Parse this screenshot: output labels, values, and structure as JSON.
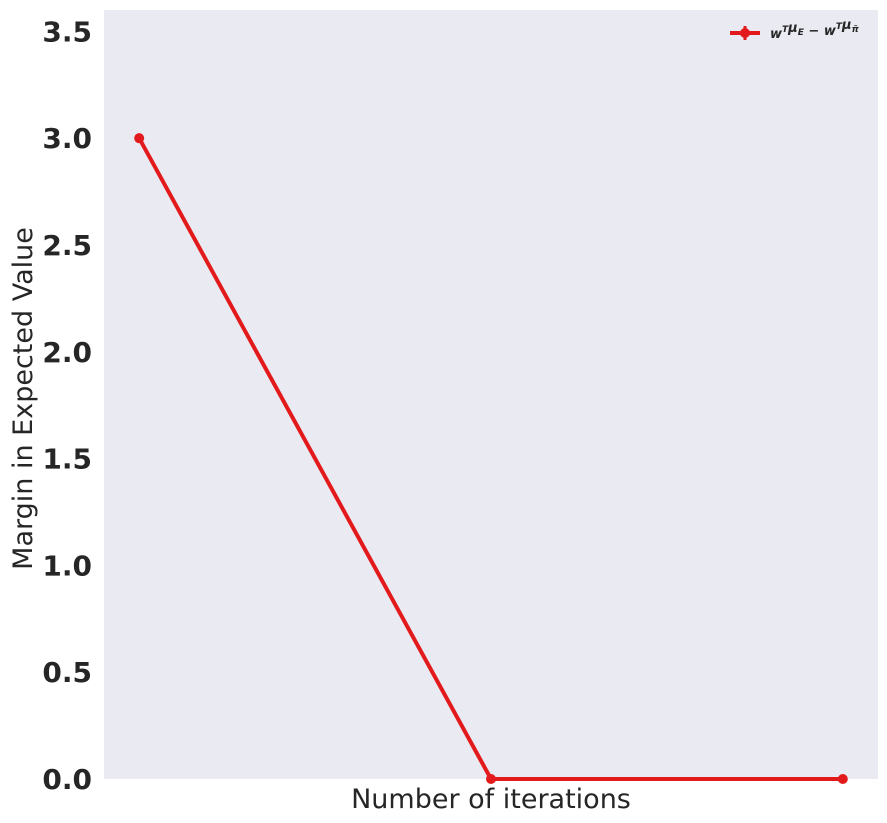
{
  "chart_data": {
    "type": "line",
    "title": "",
    "xlabel": "Number of iterations",
    "ylabel": "Margin in Expected Value",
    "x": [
      1,
      2,
      3
    ],
    "xlim": [
      0.9,
      3.1
    ],
    "ylim": [
      0,
      3.6
    ],
    "y_ticks": [
      0.0,
      0.5,
      1.0,
      1.5,
      2.0,
      2.5,
      3.0,
      3.5
    ],
    "y_tick_labels": [
      "0.0",
      "0.5",
      "1.0",
      "1.5",
      "2.0",
      "2.5",
      "3.0",
      "3.5"
    ],
    "x_tick_labels": [],
    "grid": false,
    "background": "#eaeaf2",
    "legend_position": "top-right",
    "series": [
      {
        "name": "w^T μ_E − w^T μ_π̃",
        "color": "#e31a1c",
        "values": [
          3.0,
          0.0,
          0.0
        ]
      }
    ],
    "legend": {
      "label_parts": [
        {
          "text": "w",
          "style": "normal"
        },
        {
          "text": "T",
          "style": "sup"
        },
        {
          "text": "μ",
          "style": "normal"
        },
        {
          "text": "E",
          "style": "sub"
        },
        {
          "text": " − w",
          "style": "normal"
        },
        {
          "text": "T",
          "style": "sup"
        },
        {
          "text": "μ",
          "style": "normal"
        },
        {
          "text": "π̃",
          "style": "sub"
        }
      ]
    }
  }
}
